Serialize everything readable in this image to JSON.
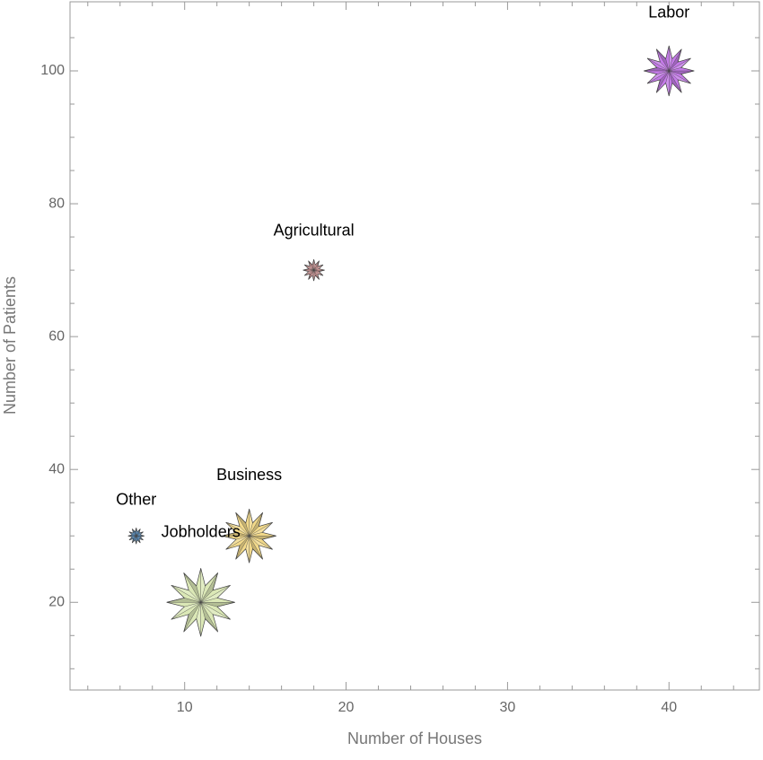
{
  "chart_data": {
    "type": "bubble",
    "x_label": "Number of Houses",
    "y_label": "Number of Patients",
    "series": [
      {
        "name": "Labor",
        "color": "#c47ae8",
        "x": [
          40
        ],
        "values": [
          100
        ],
        "sizes": [
          28
        ]
      },
      {
        "name": "Agricultural",
        "color": "#e6a6a6",
        "x": [
          18
        ],
        "values": [
          70
        ],
        "sizes": [
          12
        ]
      },
      {
        "name": "Business",
        "color": "#f2d98a",
        "x": [
          14
        ],
        "values": [
          30
        ],
        "sizes": [
          30
        ]
      },
      {
        "name": "Other",
        "color": "#5da4e4",
        "x": [
          7
        ],
        "values": [
          30
        ],
        "sizes": [
          9
        ]
      },
      {
        "name": "Jobholders",
        "color": "#dbe8b6",
        "x": [
          11
        ],
        "values": [
          20
        ],
        "sizes": [
          38
        ]
      }
    ],
    "xlim": [
      2.9,
      45.6
    ],
    "ylim": [
      6.8,
      110.4
    ],
    "xticks": [
      10,
      20,
      30,
      40
    ],
    "yticks": [
      20,
      40,
      60,
      80,
      100
    ],
    "xminorticks": [
      4,
      6,
      8,
      12,
      14,
      16,
      18,
      22,
      24,
      26,
      28,
      32,
      34,
      36,
      38,
      42,
      44
    ],
    "yminorticks": [
      10,
      15,
      25,
      30,
      35,
      45,
      50,
      55,
      65,
      70,
      75,
      85,
      90,
      95,
      105
    ]
  }
}
